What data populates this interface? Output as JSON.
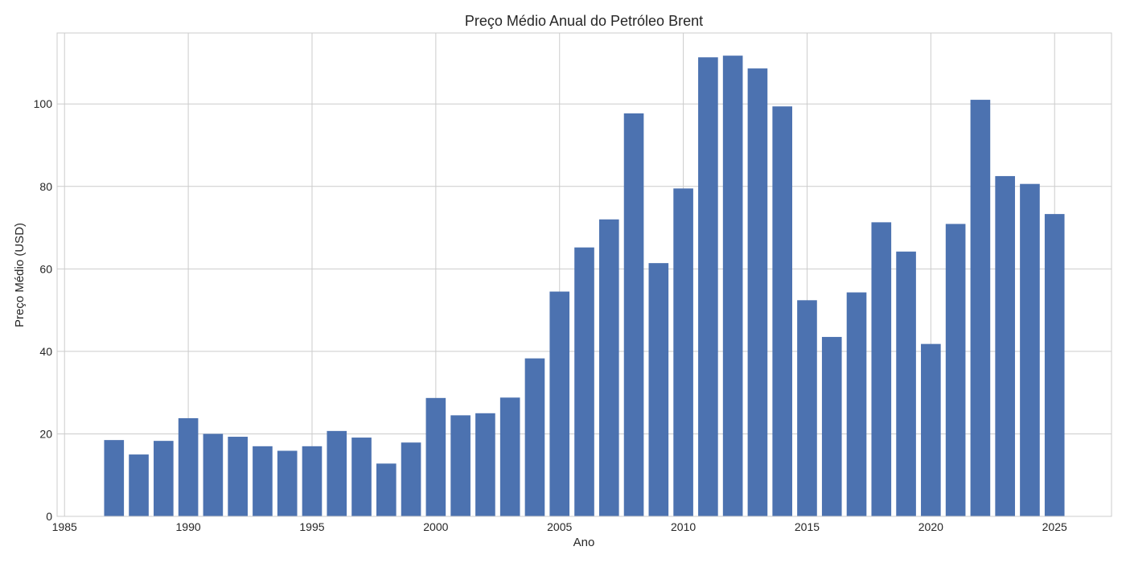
{
  "chart_data": {
    "type": "bar",
    "title": "Preço Médio Anual do Petróleo Brent",
    "xlabel": "Ano",
    "ylabel": "Preço Médio (USD)",
    "x": [
      1987,
      1988,
      1989,
      1990,
      1991,
      1992,
      1993,
      1994,
      1995,
      1996,
      1997,
      1998,
      1999,
      2000,
      2001,
      2002,
      2003,
      2004,
      2005,
      2006,
      2007,
      2008,
      2009,
      2010,
      2011,
      2012,
      2013,
      2014,
      2015,
      2016,
      2017,
      2018,
      2019,
      2020,
      2021,
      2022,
      2023,
      2024,
      2025
    ],
    "values": [
      18.5,
      15.0,
      18.3,
      23.8,
      20.0,
      19.3,
      17.0,
      15.9,
      17.0,
      20.7,
      19.1,
      12.8,
      17.9,
      28.7,
      24.5,
      25.0,
      28.8,
      38.3,
      54.5,
      65.2,
      72.0,
      97.7,
      61.4,
      79.5,
      111.3,
      111.7,
      108.6,
      99.4,
      52.4,
      43.5,
      54.3,
      71.3,
      64.2,
      41.8,
      70.9,
      101.0,
      82.5,
      80.6,
      73.3
    ],
    "xlim": [
      1984.6,
      1987.6
    ],
    "xlim_end": 2027.3,
    "ylim": [
      0,
      117.2
    ],
    "x_ticks": [
      1985,
      1990,
      1995,
      2000,
      2005,
      2010,
      2015,
      2020,
      2025
    ],
    "y_ticks": [
      0,
      20,
      40,
      60,
      80,
      100
    ],
    "bar_width": 0.8,
    "grid": true,
    "color": "#4c72b0"
  }
}
